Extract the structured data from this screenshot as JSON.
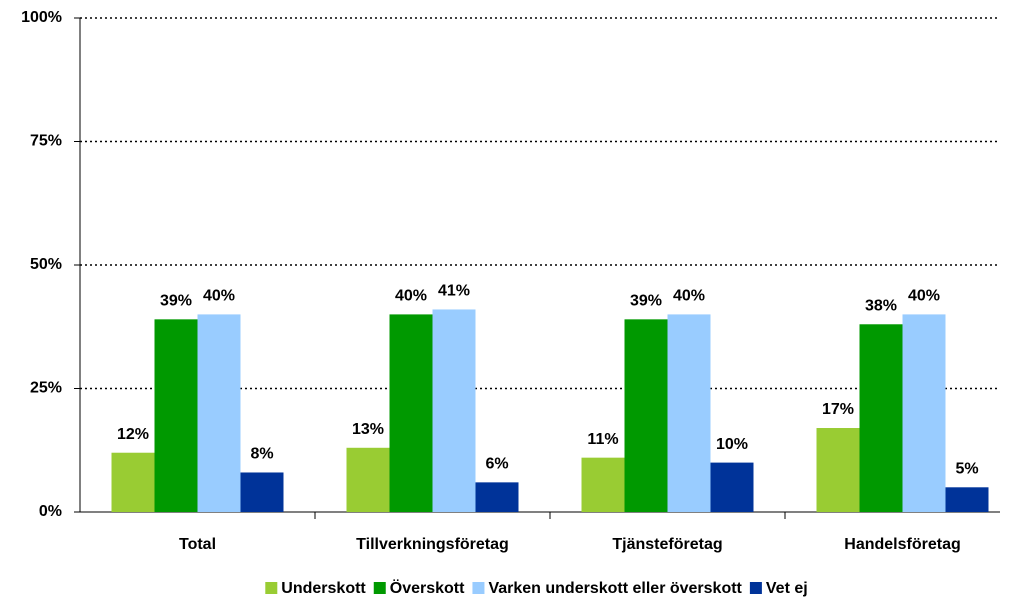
{
  "chart_data": {
    "type": "bar",
    "categories": [
      "Total",
      "Tillverkningsföretag",
      "Tjänsteföretag",
      "Handelsföretag"
    ],
    "series": [
      {
        "name": "Underskott",
        "color": "#99cc33",
        "values": [
          12,
          13,
          11,
          17
        ],
        "value_labels": [
          "12%",
          "13%",
          "11%",
          "17%"
        ]
      },
      {
        "name": "Överskott",
        "color": "#009900",
        "values": [
          39,
          40,
          39,
          38
        ],
        "value_labels": [
          "39%",
          "40%",
          "39%",
          "38%"
        ]
      },
      {
        "name": "Varken underskott eller överskott",
        "color": "#99ccff",
        "values": [
          40,
          41,
          40,
          40
        ],
        "value_labels": [
          "40%",
          "41%",
          "40%",
          "40%"
        ]
      },
      {
        "name": "Vet ej",
        "color": "#003399",
        "values": [
          8,
          6,
          10,
          5
        ],
        "value_labels": [
          "8%",
          "6%",
          "10%",
          "5%"
        ]
      }
    ],
    "ylim": [
      0,
      100
    ],
    "yticks": [
      {
        "value": 0,
        "label": "0%"
      },
      {
        "value": 25,
        "label": "25%"
      },
      {
        "value": 50,
        "label": "50%"
      },
      {
        "value": 75,
        "label": "75%"
      },
      {
        "value": 100,
        "label": "100%"
      }
    ],
    "grid": true,
    "legend": "bottom"
  }
}
